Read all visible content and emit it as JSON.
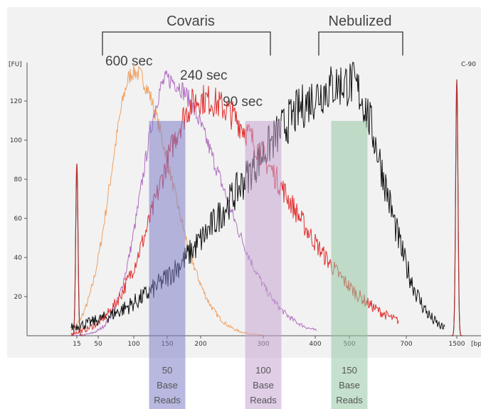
{
  "chart_data": {
    "type": "line",
    "x_scale": "categorical ladder (bp)",
    "y_label": "[FU]",
    "corner_label": "C-90",
    "x_unit_label": "[bp]",
    "x_ticks": [
      "15",
      "50",
      "100",
      "150",
      "200",
      "300",
      "400",
      "500",
      "700",
      "1500"
    ],
    "y_ticks": [
      20,
      40,
      60,
      80,
      100,
      120
    ],
    "ylim": [
      0,
      140
    ],
    "groups": [
      {
        "label": "Covaris"
      },
      {
        "label": "Nebulized"
      }
    ],
    "series": [
      {
        "name": "600 sec",
        "color": "#f0a060",
        "peak_bp": 100,
        "peak_fu": 135
      },
      {
        "name": "240 sec",
        "color": "#b070c0",
        "peak_bp": 150,
        "peak_fu": 131
      },
      {
        "name": "90 sec",
        "color": "#e03030",
        "peak_bp": 200,
        "peak_fu": 121
      },
      {
        "series_id": "nebulized",
        "color": "#111111",
        "peak_bp": 500,
        "peak_fu": 129
      }
    ],
    "marker_peaks": [
      {
        "bp": 15,
        "fu": 88
      },
      {
        "bp": 1500,
        "fu": 131
      }
    ],
    "read_boxes": [
      {
        "number": "50",
        "word1": "Base",
        "word2": "Reads",
        "color": "#7e7ec8",
        "center_bp": 150
      },
      {
        "number": "100",
        "word1": "Base",
        "word2": "Reads",
        "color": "#c7a6d3",
        "center_bp": 300
      },
      {
        "number": "150",
        "word1": "Base",
        "word2": "Reads",
        "color": "#96c7a2",
        "center_bp": 500
      }
    ]
  }
}
